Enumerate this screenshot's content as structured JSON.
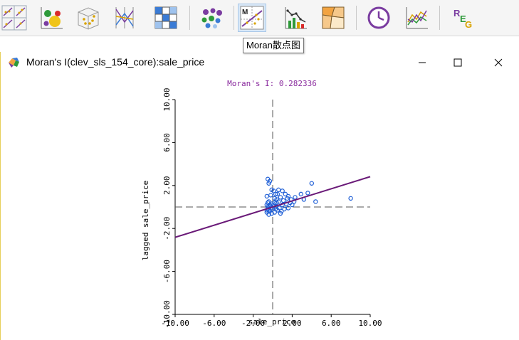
{
  "toolbar": {
    "tooltip": "Moran散点图",
    "buttons": [
      {
        "name": "scatter-matrix-icon"
      },
      {
        "name": "bubble-chart-icon"
      },
      {
        "name": "3d-scatter-icon"
      },
      {
        "name": "parallel-coordinates-icon"
      },
      {
        "name": "conditional-plot-icon"
      },
      {
        "name": "cluster-map-icon"
      },
      {
        "name": "moran-scatter-icon",
        "active": true
      },
      {
        "name": "lisa-correlogram-icon"
      },
      {
        "name": "cartogram-icon"
      },
      {
        "name": "time-clock-icon"
      },
      {
        "name": "line-chart-icon"
      },
      {
        "name": "regression-icon",
        "label": "REG"
      }
    ]
  },
  "window": {
    "title": "Moran's I(clev_sls_154_core):sale_price",
    "controls": {
      "minimize": "—",
      "maximize": "☐",
      "close": "✕"
    }
  },
  "chart_data": {
    "type": "scatter",
    "title": "Moran's I: 0.282336",
    "xlabel": "sale_price",
    "ylabel": "lagged sale_price",
    "xlim": [
      -10,
      10
    ],
    "ylim": [
      -10,
      10
    ],
    "xticks": [
      "-10.00",
      "-6.00",
      "-2.00",
      "2.00",
      "6.00",
      "10.00"
    ],
    "yticks": [
      "10.00",
      "6.00",
      "2.00",
      "-2.00",
      "-6.00",
      "-10.00"
    ],
    "slope": 0.282336,
    "colors": {
      "points": "#1f5fd6",
      "line": "#6a1a78",
      "title": "#8a2b9e"
    },
    "points": [
      [
        -0.5,
        2.6
      ],
      [
        -0.4,
        2.2
      ],
      [
        -0.3,
        2.4
      ],
      [
        -0.6,
        1.0
      ],
      [
        -0.2,
        1.1
      ],
      [
        0.1,
        1.5
      ],
      [
        0.3,
        1.2
      ],
      [
        0.6,
        1.6
      ],
      [
        1.0,
        1.5
      ],
      [
        1.3,
        1.2
      ],
      [
        1.6,
        1.0
      ],
      [
        1.9,
        0.7
      ],
      [
        2.3,
        0.9
      ],
      [
        1.1,
        0.6
      ],
      [
        0.8,
        0.9
      ],
      [
        0.4,
        0.4
      ],
      [
        0.2,
        0.8
      ],
      [
        -0.1,
        0.3
      ],
      [
        -0.4,
        0.5
      ],
      [
        -0.6,
        0.2
      ],
      [
        -0.5,
        -0.2
      ],
      [
        -0.3,
        -0.4
      ],
      [
        -0.1,
        -0.6
      ],
      [
        0.2,
        -0.5
      ],
      [
        0.5,
        -0.3
      ],
      [
        0.7,
        -0.1
      ],
      [
        1.0,
        0.2
      ],
      [
        1.4,
        0.3
      ],
      [
        1.8,
        0.4
      ],
      [
        2.0,
        0.2
      ],
      [
        0.9,
        -0.4
      ],
      [
        1.2,
        -0.2
      ],
      [
        0.3,
        0.0
      ],
      [
        -0.2,
        0.1
      ],
      [
        0.0,
        -0.2
      ],
      [
        -0.6,
        -0.5
      ],
      [
        -0.4,
        -0.7
      ],
      [
        0.6,
        0.5
      ],
      [
        1.5,
        0.8
      ],
      [
        2.2,
        0.5
      ],
      [
        2.9,
        1.2
      ],
      [
        3.2,
        0.7
      ],
      [
        4.0,
        2.2
      ],
      [
        4.4,
        0.5
      ],
      [
        3.6,
        1.3
      ],
      [
        0.5,
        1.2
      ],
      [
        -0.1,
        1.6
      ],
      [
        0.8,
        -0.6
      ],
      [
        1.6,
        -0.1
      ],
      [
        8.0,
        0.8
      ],
      [
        -0.5,
        0.0
      ],
      [
        -0.3,
        0.2
      ],
      [
        -0.4,
        -0.3
      ],
      [
        -0.2,
        -0.1
      ],
      [
        -0.6,
        -0.3
      ],
      [
        0.1,
        0.2
      ],
      [
        0.3,
        -0.2
      ],
      [
        -0.5,
        0.4
      ],
      [
        0.4,
        0.7
      ],
      [
        0.2,
        0.4
      ]
    ]
  }
}
